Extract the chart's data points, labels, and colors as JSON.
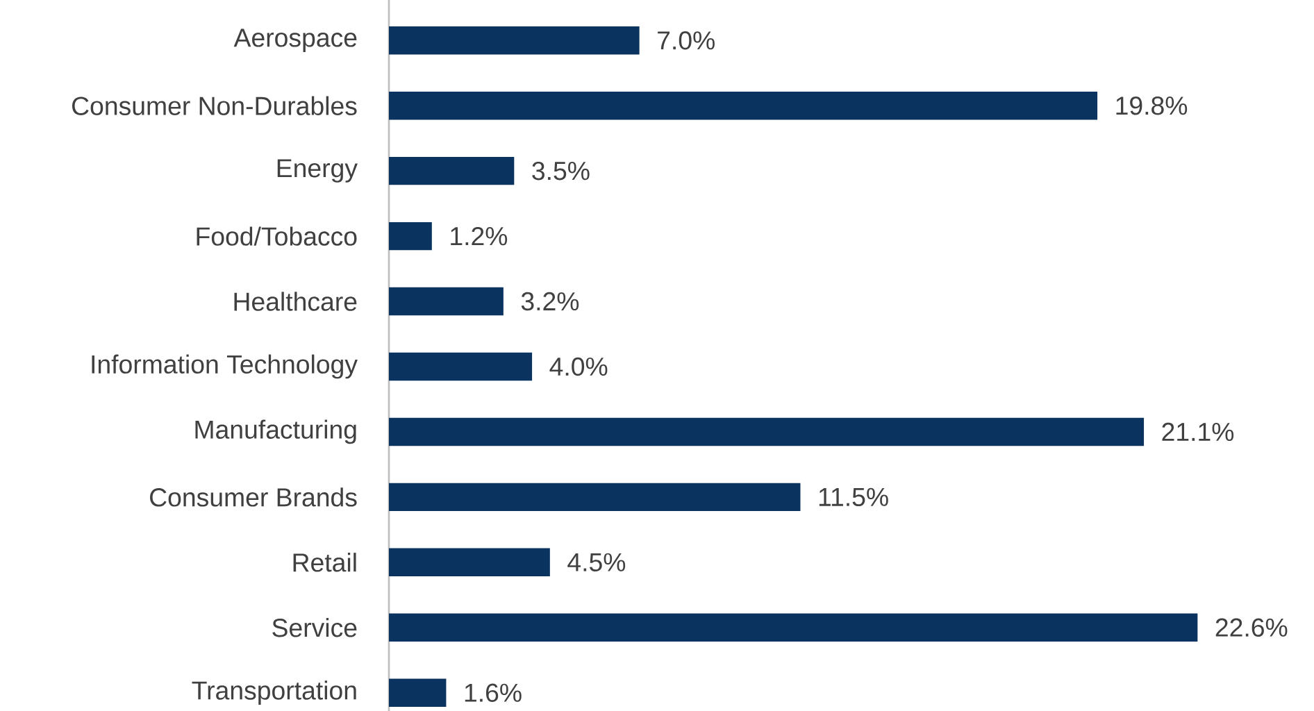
{
  "chart_data": {
    "type": "bar",
    "orientation": "horizontal",
    "color": "#0b3360",
    "categories": [
      "Aerospace",
      "Consumer Non-Durables",
      "Energy",
      "Food/Tobacco",
      "Healthcare",
      "Information Technology",
      "Manufacturing",
      "Consumer Brands",
      "Retail",
      "Service",
      "Transportation"
    ],
    "values": [
      7.0,
      19.8,
      3.5,
      1.2,
      3.2,
      4.0,
      21.1,
      11.5,
      4.5,
      22.6,
      1.6
    ],
    "value_labels": [
      "7.0%",
      "19.8%",
      "3.5%",
      "1.2%",
      "3.2%",
      "4.0%",
      "21.1%",
      "11.5%",
      "4.5%",
      "22.6%",
      "1.6%"
    ]
  }
}
